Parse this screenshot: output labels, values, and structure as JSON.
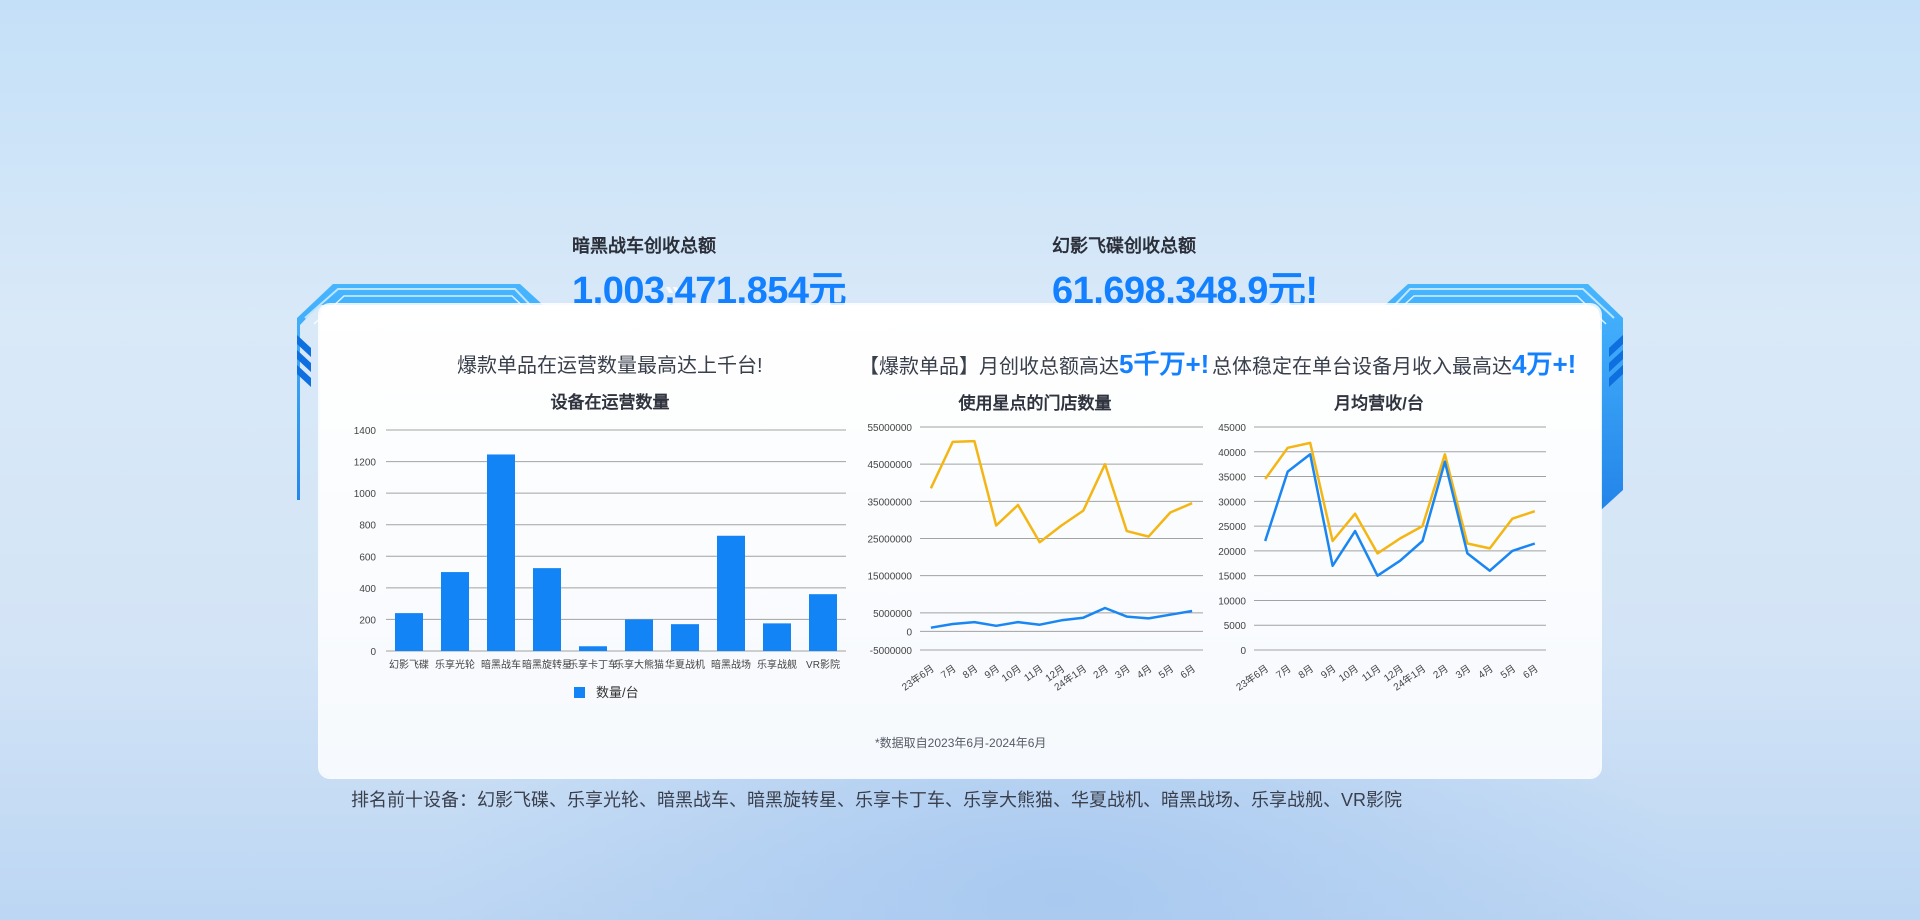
{
  "stats": [
    {
      "label": "暗黑战车创收总额",
      "value": "1,003,471,854元"
    },
    {
      "label": "幻影飞碟创收总额",
      "value": "61,698,348.9元!"
    }
  ],
  "headlines": {
    "h1": "爆款单品在运营数量最高达上千台!",
    "h2_prefix": "【爆款单品】月创收总额高达",
    "h2_highlight": "5千万+!",
    "h3_prefix": "总体稳定在单台设备月收入最高达",
    "h3_highlight": "4万+!"
  },
  "note": "*数据取自2023年6月-2024年6月",
  "footer": "排名前十设备：幻影飞碟、乐享光轮、暗黑战车、暗黑旋转星、乐享卡丁车、乐享大熊猫、华夏战机、暗黑战场、乐享战舰、VR影院",
  "colors": {
    "accent": "#1380ff",
    "bar": "#1384f5",
    "yellow": "#f4b614",
    "blue": "#1a86f2",
    "grid": "#8c8c8c"
  },
  "chart_data": [
    {
      "type": "bar",
      "title": "设备在运营数量",
      "categories": [
        "幻影飞碟",
        "乐享光轮",
        "暗黑战车",
        "暗黑旋转星",
        "乐享卡丁车",
        "乐享大熊猫",
        "华夏战机",
        "暗黑战场",
        "乐享战舰",
        "VR影院"
      ],
      "series": [
        {
          "name": "数量/台",
          "values": [
            240,
            500,
            1245,
            525,
            30,
            200,
            170,
            730,
            175,
            360
          ]
        }
      ],
      "ylim": [
        0,
        1400
      ],
      "yticks": [
        0,
        200,
        400,
        600,
        800,
        1000,
        1200,
        1400
      ],
      "legend": "bottom",
      "grid": true
    },
    {
      "type": "line",
      "title": "使用星点的门店数量",
      "x": [
        "23年6月",
        "7月",
        "8月",
        "9月",
        "10月",
        "11月",
        "12月",
        "24年1月",
        "2月",
        "3月",
        "4月",
        "5月",
        "6月"
      ],
      "series": [
        {
          "name": "幻影飞碟",
          "color": "#f4b614",
          "values": [
            38500000,
            51000000,
            51200000,
            28500000,
            34000000,
            24000000,
            28500000,
            32500000,
            45000000,
            27000000,
            25500000,
            32000000,
            34500000
          ]
        },
        {
          "name": "暗黑战车",
          "color": "#1a86f2",
          "values": [
            1000000,
            2000000,
            2500000,
            1500000,
            2500000,
            1800000,
            3000000,
            3700000,
            6300000,
            4000000,
            3500000,
            4500000,
            5500000
          ]
        }
      ],
      "ylim": [
        -5000000,
        55000000
      ],
      "yticks": [
        -5000000,
        0,
        5000000,
        15000000,
        25000000,
        35000000,
        45000000,
        55000000
      ],
      "legend": "bottom",
      "grid": true
    },
    {
      "type": "line",
      "title": "月均营收/台",
      "x": [
        "23年6月",
        "7月",
        "8月",
        "9月",
        "10月",
        "11月",
        "12月",
        "24年1月",
        "2月",
        "3月",
        "4月",
        "5月",
        "6月"
      ],
      "series": [
        {
          "name": "幻影飞碟",
          "color": "#f4b614",
          "values": [
            34500,
            40800,
            41800,
            22000,
            27500,
            19500,
            22500,
            25000,
            39500,
            21500,
            20500,
            26500,
            28000
          ]
        },
        {
          "name": "暗黑战车",
          "color": "#1a86f2",
          "values": [
            22000,
            36000,
            39500,
            17000,
            24000,
            15000,
            18000,
            22000,
            38000,
            19500,
            16000,
            20000,
            21500
          ]
        }
      ],
      "ylim": [
        0,
        45000
      ],
      "yticks": [
        0,
        5000,
        10000,
        15000,
        20000,
        25000,
        30000,
        35000,
        40000,
        45000
      ],
      "legend": "bottom",
      "grid": true
    }
  ]
}
